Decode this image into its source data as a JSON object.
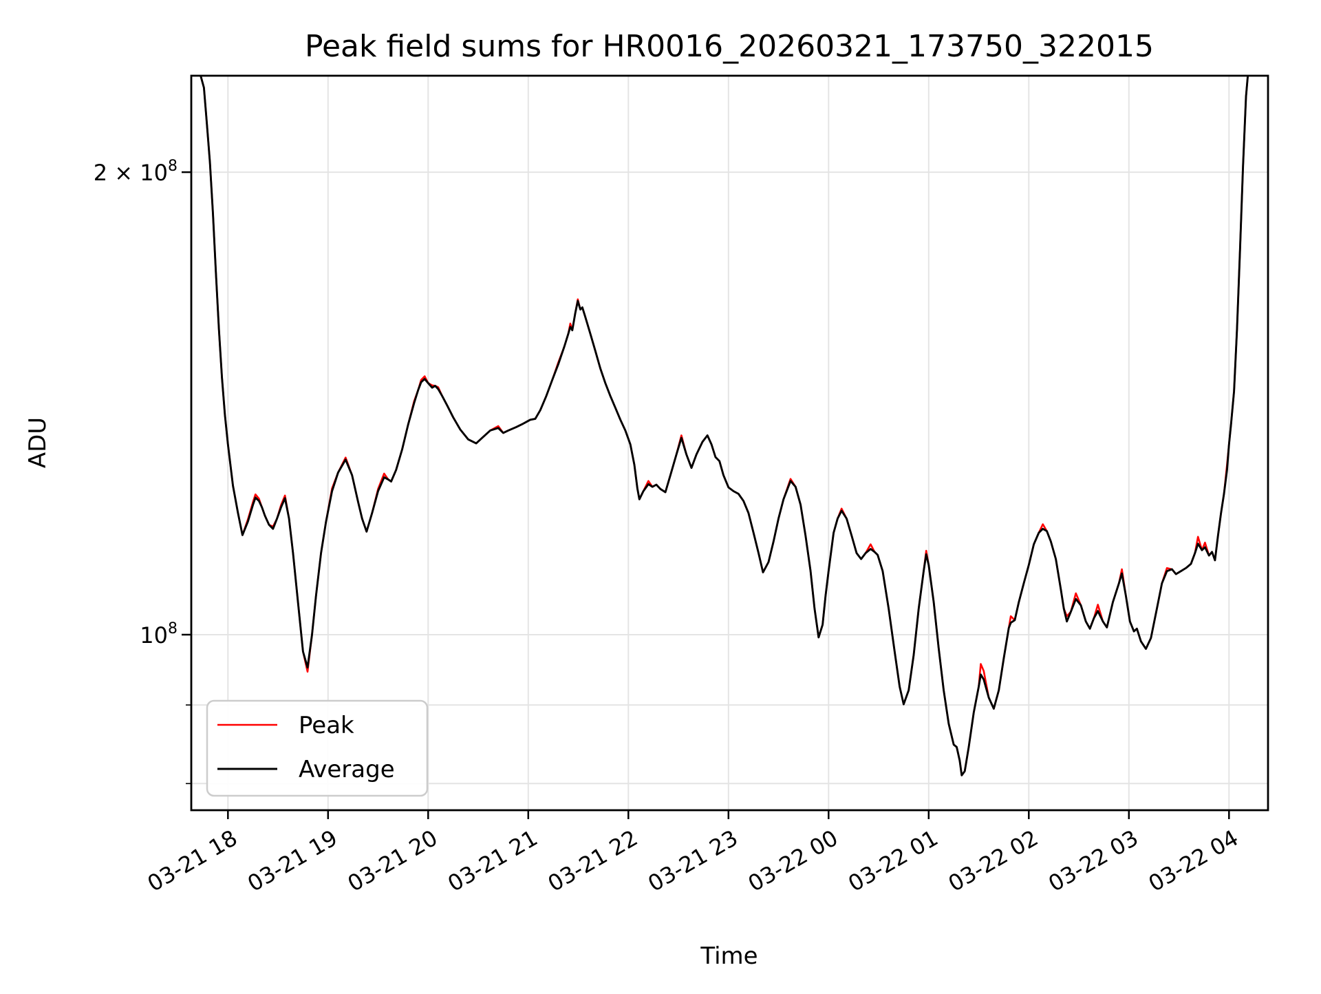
{
  "window": {
    "background": "#ffffff"
  },
  "chart_data": {
    "type": "line",
    "title": "Peak field sums for HR0016_20260321_173750_322015",
    "xlabel": "Time",
    "ylabel": "ADU",
    "y_scale": "log",
    "value_unit_multiplier": 100000000.0,
    "value_unit": "ADU",
    "ylim": [
      76800000.0,
      232000000.0
    ],
    "grid": true,
    "grid_color": "#e4e4e4",
    "axis_color": "#000000",
    "x_tick_hours": [
      0,
      1,
      2,
      3,
      4,
      5,
      6,
      7,
      8,
      9,
      10
    ],
    "x_tick_labels": [
      "03-21 18",
      "03-21 19",
      "03-21 20",
      "03-21 21",
      "03-21 22",
      "03-21 23",
      "03-22 00",
      "03-22 01",
      "03-22 02",
      "03-22 03",
      "03-22 04"
    ],
    "x_tick_rotation_deg": 30,
    "y_axis": {
      "major_ticks": [
        {
          "base": "2 × 10",
          "exp": "8",
          "value": 2.0
        },
        {
          "base": "10",
          "exp": "8",
          "value": 1.0
        }
      ],
      "minor_tick_values": [
        0.9,
        0.8
      ]
    },
    "legend": {
      "position": "lower-left",
      "entries": [
        {
          "label": "Peak",
          "color": "#ff0000"
        },
        {
          "label": "Average",
          "color": "#000000"
        }
      ]
    },
    "series_note": "points are [hours_since_03-21_18:00, average_value_x1e8_ADU, peak_minus_average_x1e8_ADU]; Peak = avg + delta",
    "points": [
      [
        -0.37,
        2.34,
        0
      ],
      [
        -0.33,
        2.33,
        0
      ],
      [
        -0.28,
        2.32,
        0
      ],
      [
        -0.24,
        2.27,
        0
      ],
      [
        -0.21,
        2.15,
        0
      ],
      [
        -0.18,
        2.03,
        0
      ],
      [
        -0.15,
        1.88,
        0
      ],
      [
        -0.12,
        1.72,
        0
      ],
      [
        -0.09,
        1.58,
        0
      ],
      [
        -0.06,
        1.47,
        0
      ],
      [
        -0.03,
        1.39,
        0
      ],
      [
        0,
        1.33,
        0
      ],
      [
        0.05,
        1.25,
        0
      ],
      [
        0.1,
        1.2,
        0
      ],
      [
        0.145,
        1.161,
        0
      ],
      [
        0.2,
        1.185,
        0.004
      ],
      [
        0.25,
        1.215,
        0.005
      ],
      [
        0.275,
        1.228,
        0.006
      ],
      [
        0.31,
        1.222,
        0.004
      ],
      [
        0.34,
        1.21,
        0
      ],
      [
        0.37,
        1.195,
        0
      ],
      [
        0.41,
        1.179,
        0
      ],
      [
        0.45,
        1.172,
        0.004
      ],
      [
        0.49,
        1.19,
        0
      ],
      [
        0.53,
        1.21,
        0.004
      ],
      [
        0.57,
        1.227,
        0.005
      ],
      [
        0.61,
        1.19,
        0
      ],
      [
        0.65,
        1.13,
        0
      ],
      [
        0.7,
        1.05,
        0
      ],
      [
        0.75,
        0.975,
        0
      ],
      [
        0.795,
        0.952,
        -0.006
      ],
      [
        0.84,
        1.0,
        0
      ],
      [
        0.88,
        1.06,
        0
      ],
      [
        0.93,
        1.13,
        0
      ],
      [
        0.98,
        1.185,
        0
      ],
      [
        1.04,
        1.24,
        0.005
      ],
      [
        1.1,
        1.275,
        0
      ],
      [
        1.175,
        1.3,
        0.004
      ],
      [
        1.24,
        1.27,
        0
      ],
      [
        1.3,
        1.22,
        0
      ],
      [
        1.34,
        1.19,
        0
      ],
      [
        1.385,
        1.167,
        0
      ],
      [
        1.44,
        1.2,
        0
      ],
      [
        1.5,
        1.24,
        0.004
      ],
      [
        1.56,
        1.266,
        0.007
      ],
      [
        1.6,
        1.262,
        0
      ],
      [
        1.63,
        1.258,
        0
      ],
      [
        1.68,
        1.28,
        0
      ],
      [
        1.74,
        1.32,
        0
      ],
      [
        1.8,
        1.37,
        0
      ],
      [
        1.86,
        1.415,
        0.004
      ],
      [
        1.9,
        1.443,
        0
      ],
      [
        1.93,
        1.46,
        0.005
      ],
      [
        1.965,
        1.467,
        0.006
      ],
      [
        2.0,
        1.458,
        0
      ],
      [
        2.04,
        1.448,
        0.005
      ],
      [
        2.07,
        1.452,
        0
      ],
      [
        2.1,
        1.445,
        0.004
      ],
      [
        2.14,
        1.43,
        0
      ],
      [
        2.19,
        1.41,
        0
      ],
      [
        2.25,
        1.385,
        0
      ],
      [
        2.32,
        1.36,
        0
      ],
      [
        2.4,
        1.34,
        0
      ],
      [
        2.48,
        1.332,
        0
      ],
      [
        2.55,
        1.345,
        0
      ],
      [
        2.62,
        1.358,
        0
      ],
      [
        2.7,
        1.363,
        0.004
      ],
      [
        2.75,
        1.353,
        0
      ],
      [
        2.8,
        1.358,
        0
      ],
      [
        2.88,
        1.365,
        0
      ],
      [
        2.95,
        1.372,
        0
      ],
      [
        3.02,
        1.38,
        0
      ],
      [
        3.07,
        1.382,
        0
      ],
      [
        3.12,
        1.4,
        0
      ],
      [
        3.18,
        1.43,
        0
      ],
      [
        3.24,
        1.465,
        0
      ],
      [
        3.3,
        1.5,
        0.004
      ],
      [
        3.36,
        1.54,
        0
      ],
      [
        3.4,
        1.57,
        0
      ],
      [
        3.42,
        1.586,
        0.008
      ],
      [
        3.44,
        1.578,
        0
      ],
      [
        3.47,
        1.62,
        0
      ],
      [
        3.495,
        1.649,
        0.004
      ],
      [
        3.52,
        1.628,
        0
      ],
      [
        3.54,
        1.633,
        0
      ],
      [
        3.57,
        1.61,
        0
      ],
      [
        3.62,
        1.57,
        0
      ],
      [
        3.67,
        1.53,
        0
      ],
      [
        3.72,
        1.49,
        0
      ],
      [
        3.77,
        1.458,
        0
      ],
      [
        3.82,
        1.43,
        0
      ],
      [
        3.87,
        1.405,
        0
      ],
      [
        3.92,
        1.38,
        0
      ],
      [
        3.97,
        1.358,
        0
      ],
      [
        4.02,
        1.33,
        0
      ],
      [
        4.06,
        1.29,
        0
      ],
      [
        4.09,
        1.245,
        0
      ],
      [
        4.11,
        1.225,
        0
      ],
      [
        4.15,
        1.24,
        0
      ],
      [
        4.2,
        1.253,
        0.006
      ],
      [
        4.24,
        1.248,
        0
      ],
      [
        4.28,
        1.252,
        0
      ],
      [
        4.32,
        1.244,
        0
      ],
      [
        4.37,
        1.238,
        0
      ],
      [
        4.42,
        1.27,
        0
      ],
      [
        4.48,
        1.31,
        0
      ],
      [
        4.53,
        1.343,
        0.005
      ],
      [
        4.58,
        1.31,
        0
      ],
      [
        4.63,
        1.284,
        0
      ],
      [
        4.68,
        1.31,
        0
      ],
      [
        4.74,
        1.335,
        0
      ],
      [
        4.79,
        1.348,
        0
      ],
      [
        4.83,
        1.33,
        0
      ],
      [
        4.87,
        1.305,
        0
      ],
      [
        4.91,
        1.297,
        0
      ],
      [
        4.95,
        1.27,
        0
      ],
      [
        5.0,
        1.247,
        0
      ],
      [
        5.05,
        1.24,
        0
      ],
      [
        5.1,
        1.235,
        0
      ],
      [
        5.15,
        1.222,
        0
      ],
      [
        5.2,
        1.2,
        0
      ],
      [
        5.25,
        1.165,
        0
      ],
      [
        5.3,
        1.13,
        0
      ],
      [
        5.345,
        1.098,
        0
      ],
      [
        5.4,
        1.115,
        0
      ],
      [
        5.45,
        1.15,
        0
      ],
      [
        5.5,
        1.19,
        0
      ],
      [
        5.55,
        1.225,
        0
      ],
      [
        5.62,
        1.259,
        0.004
      ],
      [
        5.67,
        1.248,
        0
      ],
      [
        5.72,
        1.215,
        0
      ],
      [
        5.77,
        1.16,
        0
      ],
      [
        5.82,
        1.1,
        0
      ],
      [
        5.86,
        1.04,
        0
      ],
      [
        5.9,
        0.996,
        0
      ],
      [
        5.94,
        1.015,
        0
      ],
      [
        5.97,
        1.06,
        0
      ],
      [
        6.0,
        1.1,
        0
      ],
      [
        6.05,
        1.165,
        0
      ],
      [
        6.09,
        1.19,
        0
      ],
      [
        6.13,
        1.204,
        0.004
      ],
      [
        6.18,
        1.19,
        0
      ],
      [
        6.23,
        1.16,
        0
      ],
      [
        6.28,
        1.13,
        0
      ],
      [
        6.325,
        1.12,
        0
      ],
      [
        6.37,
        1.13,
        0
      ],
      [
        6.42,
        1.137,
        0.008
      ],
      [
        6.46,
        1.132,
        0
      ],
      [
        6.49,
        1.127,
        0
      ],
      [
        6.54,
        1.1,
        0
      ],
      [
        6.6,
        1.04,
        0
      ],
      [
        6.66,
        0.975,
        0
      ],
      [
        6.71,
        0.925,
        0
      ],
      [
        6.75,
        0.901,
        0
      ],
      [
        6.8,
        0.92,
        0
      ],
      [
        6.85,
        0.97,
        0
      ],
      [
        6.9,
        1.04,
        0
      ],
      [
        6.95,
        1.1,
        0
      ],
      [
        6.975,
        1.128,
        0.006
      ],
      [
        7.0,
        1.11,
        0
      ],
      [
        7.05,
        1.05,
        0
      ],
      [
        7.1,
        0.98,
        0
      ],
      [
        7.15,
        0.92,
        0
      ],
      [
        7.2,
        0.875,
        0
      ],
      [
        7.25,
        0.848,
        0
      ],
      [
        7.28,
        0.845,
        0
      ],
      [
        7.31,
        0.828,
        0
      ],
      [
        7.33,
        0.81,
        0
      ],
      [
        7.36,
        0.815,
        0
      ],
      [
        7.4,
        0.845,
        0
      ],
      [
        7.45,
        0.89,
        0
      ],
      [
        7.5,
        0.925,
        0
      ],
      [
        7.52,
        0.942,
        0.015
      ],
      [
        7.55,
        0.935,
        0.012
      ],
      [
        7.6,
        0.91,
        0
      ],
      [
        7.65,
        0.895,
        0
      ],
      [
        7.7,
        0.92,
        0
      ],
      [
        7.75,
        0.965,
        0
      ],
      [
        7.8,
        1.01,
        0
      ],
      [
        7.82,
        1.018,
        0.01
      ],
      [
        7.86,
        1.022,
        0
      ],
      [
        7.9,
        1.05,
        0
      ],
      [
        7.95,
        1.08,
        0
      ],
      [
        8.0,
        1.11,
        0
      ],
      [
        8.05,
        1.145,
        0
      ],
      [
        8.1,
        1.165,
        0
      ],
      [
        8.14,
        1.172,
        0.008
      ],
      [
        8.18,
        1.168,
        0
      ],
      [
        8.22,
        1.15,
        0
      ],
      [
        8.27,
        1.12,
        0
      ],
      [
        8.32,
        1.07,
        0
      ],
      [
        8.35,
        1.04,
        0
      ],
      [
        8.38,
        1.02,
        0.008
      ],
      [
        8.42,
        1.035,
        0
      ],
      [
        8.47,
        1.055,
        0.009
      ],
      [
        8.52,
        1.045,
        0
      ],
      [
        8.57,
        1.02,
        0
      ],
      [
        8.61,
        1.009,
        0
      ],
      [
        8.65,
        1.025,
        0
      ],
      [
        8.69,
        1.036,
        0.01
      ],
      [
        8.74,
        1.02,
        0
      ],
      [
        8.78,
        1.011,
        0
      ],
      [
        8.84,
        1.05,
        0
      ],
      [
        8.9,
        1.08,
        0
      ],
      [
        8.93,
        1.096,
        0.007
      ],
      [
        8.97,
        1.06,
        0
      ],
      [
        9.01,
        1.02,
        0
      ],
      [
        9.05,
        1.005,
        0
      ],
      [
        9.08,
        1.009,
        0
      ],
      [
        9.12,
        0.99,
        0
      ],
      [
        9.17,
        0.979,
        0
      ],
      [
        9.22,
        0.995,
        0
      ],
      [
        9.28,
        1.04,
        0
      ],
      [
        9.33,
        1.08,
        0
      ],
      [
        9.38,
        1.1,
        0.005
      ],
      [
        9.43,
        1.103,
        0
      ],
      [
        9.47,
        1.095,
        0
      ],
      [
        9.52,
        1.1,
        0
      ],
      [
        9.57,
        1.105,
        0
      ],
      [
        9.62,
        1.112,
        0
      ],
      [
        9.66,
        1.13,
        0
      ],
      [
        9.69,
        1.146,
        0.012
      ],
      [
        9.73,
        1.135,
        0
      ],
      [
        9.76,
        1.14,
        0.008
      ],
      [
        9.8,
        1.126,
        0
      ],
      [
        9.83,
        1.132,
        0
      ],
      [
        9.86,
        1.118,
        0
      ],
      [
        9.89,
        1.16,
        0
      ],
      [
        9.92,
        1.2,
        0
      ],
      [
        9.95,
        1.235,
        0
      ],
      [
        9.98,
        1.28,
        0.01
      ],
      [
        10.0,
        1.33,
        0
      ],
      [
        10.02,
        1.37,
        0
      ],
      [
        10.05,
        1.44,
        0
      ],
      [
        10.08,
        1.58,
        0
      ],
      [
        10.11,
        1.78,
        0
      ],
      [
        10.14,
        2.02,
        0
      ],
      [
        10.17,
        2.24,
        0
      ],
      [
        10.2,
        2.36,
        0
      ],
      [
        10.28,
        2.43,
        0
      ],
      [
        10.39,
        2.45,
        0
      ]
    ]
  }
}
